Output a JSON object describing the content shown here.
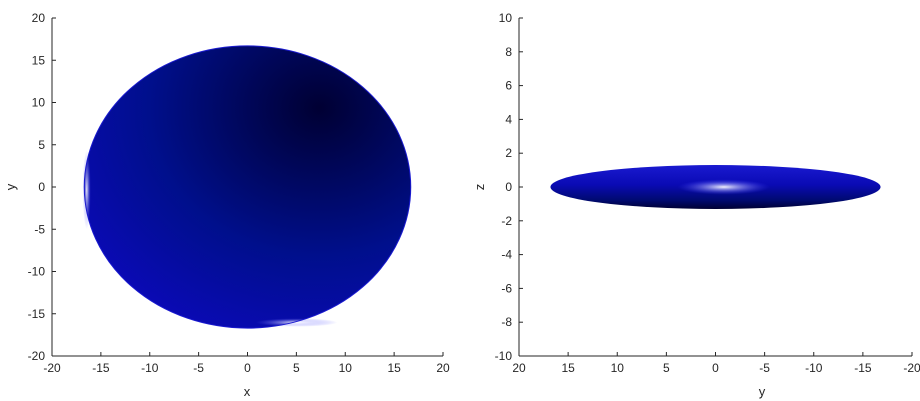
{
  "chart_data": [
    {
      "type": "surface",
      "panel": "left",
      "view": "top (x-y plane)",
      "xlabel": "x",
      "ylabel": "y",
      "xlim": [
        -20,
        20
      ],
      "ylim": [
        -20,
        20
      ],
      "xticks": [
        -20,
        -15,
        -10,
        -5,
        0,
        5,
        10,
        15,
        20
      ],
      "yticks": [
        -20,
        -15,
        -10,
        -5,
        0,
        5,
        10,
        15,
        20
      ],
      "x_reversed": false,
      "grid": false,
      "shape": {
        "kind": "ellipse",
        "center": [
          0,
          0
        ],
        "semi_axis_x": 16.7,
        "semi_axis_y": 16.7,
        "color": "#0a0ab4",
        "shade_dark": "#000033",
        "highlight": "#ffffff"
      }
    },
    {
      "type": "surface",
      "panel": "right",
      "view": "side (y-z plane)",
      "xlabel": "y",
      "ylabel": "z",
      "xlim": [
        -20,
        20
      ],
      "ylim": [
        -10,
        10
      ],
      "xticks": [
        20,
        15,
        10,
        5,
        0,
        -5,
        -10,
        -15,
        -20
      ],
      "yticks": [
        -10,
        -8,
        -6,
        -4,
        -2,
        0,
        2,
        4,
        6,
        8,
        10
      ],
      "x_reversed": true,
      "grid": false,
      "shape": {
        "kind": "ellipse",
        "center": [
          0,
          0
        ],
        "semi_axis_x": 16.8,
        "semi_axis_y": 1.3,
        "color": "#0a0ab4",
        "shade_dark": "#000033",
        "highlight": "#ffffff"
      }
    }
  ]
}
